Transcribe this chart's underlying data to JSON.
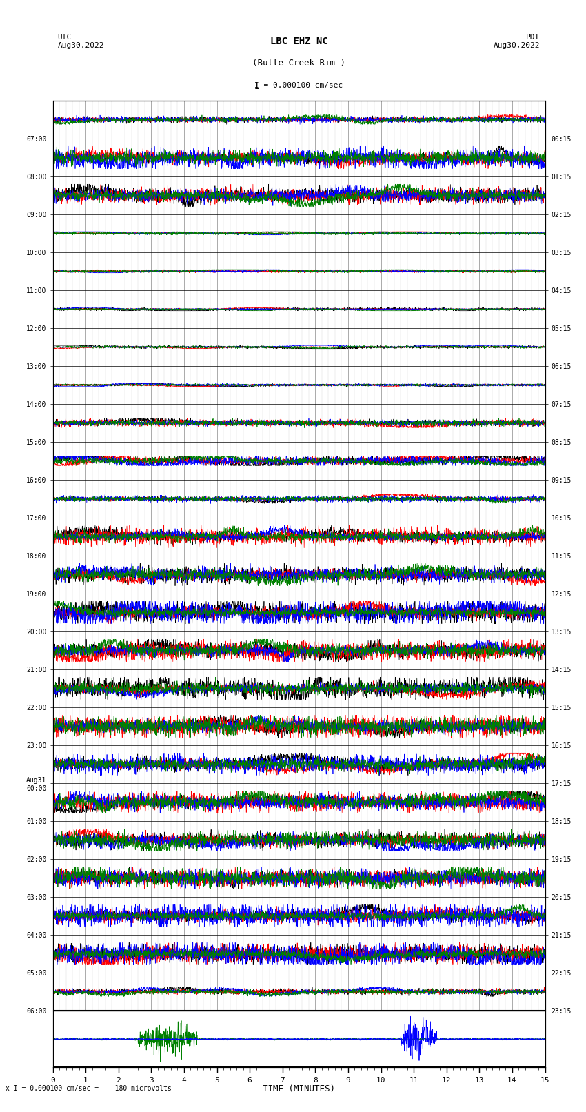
{
  "title_line1": "LBC EHZ NC",
  "title_line2": "(Butte Creek Rim )",
  "scale_label": "I = 0.000100 cm/sec",
  "left_date_label": "UTC\nAug30,2022",
  "right_date_label": "PDT\nAug30,2022",
  "bottom_label": "x I = 0.000100 cm/sec =    180 microvolts",
  "xlabel": "TIME (MINUTES)",
  "utc_times": [
    "07:00",
    "08:00",
    "09:00",
    "10:00",
    "11:00",
    "12:00",
    "13:00",
    "14:00",
    "15:00",
    "16:00",
    "17:00",
    "18:00",
    "19:00",
    "20:00",
    "21:00",
    "22:00",
    "23:00",
    "Aug31\n00:00",
    "01:00",
    "02:00",
    "03:00",
    "04:00",
    "05:00",
    "06:00"
  ],
  "pdt_times": [
    "00:15",
    "01:15",
    "02:15",
    "03:15",
    "04:15",
    "05:15",
    "06:15",
    "07:15",
    "08:15",
    "09:15",
    "10:15",
    "11:15",
    "12:15",
    "13:15",
    "14:15",
    "15:15",
    "16:15",
    "17:15",
    "18:15",
    "19:15",
    "20:15",
    "21:15",
    "22:15",
    "23:15"
  ],
  "num_rows": 24,
  "x_min": 0,
  "x_max": 15,
  "x_ticks": [
    0,
    1,
    2,
    3,
    4,
    5,
    6,
    7,
    8,
    9,
    10,
    11,
    12,
    13,
    14,
    15
  ],
  "background_color": "#ffffff",
  "grid_color": "#888888",
  "trace_colors": [
    "black",
    "red",
    "blue",
    "green"
  ],
  "noise_scale_early": 0.05,
  "noise_scale_late": 0.35,
  "fig_width": 8.5,
  "fig_height": 16.13
}
